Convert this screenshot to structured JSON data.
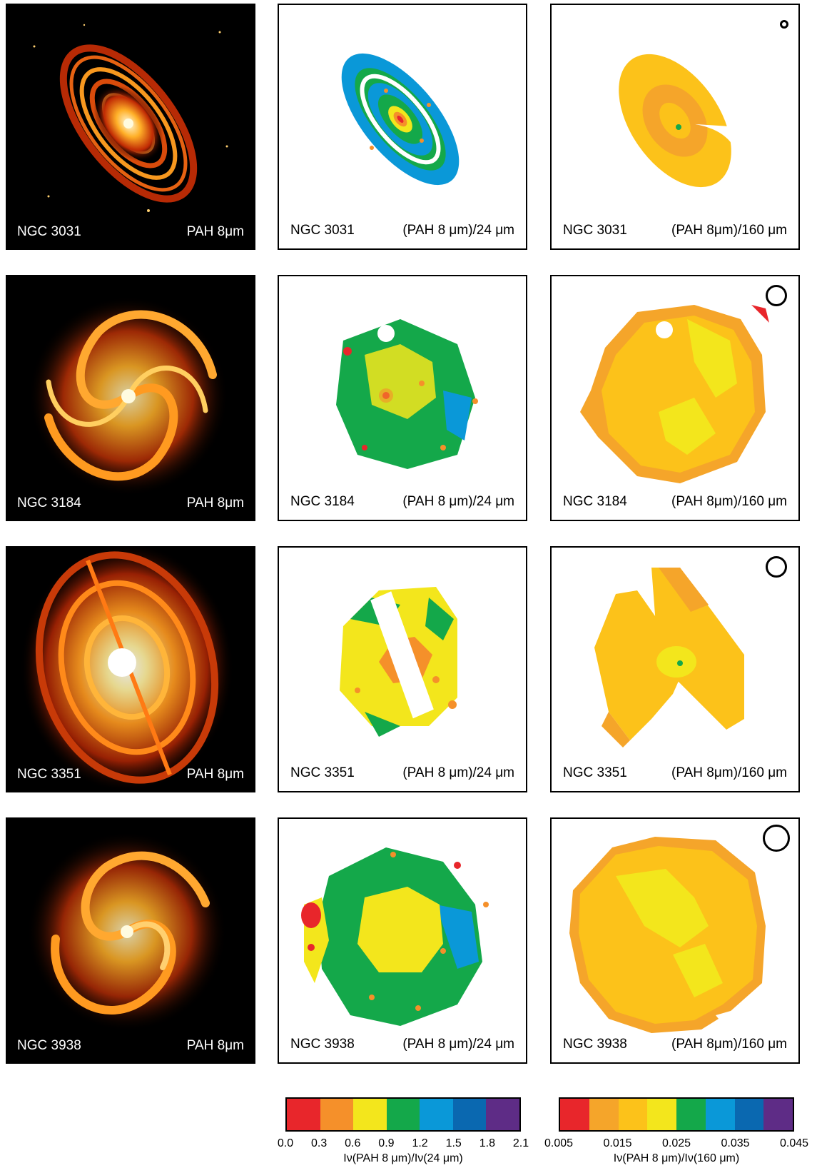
{
  "rows": [
    {
      "galaxy": "NGC 3031",
      "pah_label": "PAH 8μm",
      "ratio24_label": "(PAH 8 μm)/24 μm",
      "ratio160_label": "(PAH 8μm)/160 μm"
    },
    {
      "galaxy": "NGC 3184",
      "pah_label": "PAH 8μm",
      "ratio24_label": "(PAH 8 μm)/24 μm",
      "ratio160_label": "(PAH 8μm)/160 μm"
    },
    {
      "galaxy": "NGC 3351",
      "pah_label": "PAH 8μm",
      "ratio24_label": "(PAH 8 μm)/24 μm",
      "ratio160_label": "(PAH 8μm)/160 μm"
    },
    {
      "galaxy": "NGC 3938",
      "pah_label": "PAH 8μm",
      "ratio24_label": "(PAH 8 μm)/24 μm",
      "ratio160_label": "(PAH 8μm)/160 μm"
    }
  ],
  "colorbars": [
    {
      "ticks": [
        "0.0",
        "0.3",
        "0.6",
        "0.9",
        "1.2",
        "1.5",
        "1.8",
        "2.1"
      ],
      "title": "Iν(PAH 8 μm)/Iν(24 μm)",
      "colors": [
        "#e8262b",
        "#f5902a",
        "#f3e61c",
        "#14a84a",
        "#0a98d8",
        "#0a68b0",
        "#5e2c86"
      ]
    },
    {
      "ticks": [
        "0.005",
        "0.015",
        "0.025",
        "0.035",
        "0.045"
      ],
      "title": "Iν(PAH 8 μm)/Iν(160 μm)",
      "colors": [
        "#e8262b",
        "#f5a52a",
        "#fcc21a",
        "#f3e61c",
        "#14a84a",
        "#0a98d8",
        "#0a68b0",
        "#5e2c86"
      ]
    }
  ],
  "palette": {
    "red": "#e8262b",
    "orange": "#f5902a",
    "light_orange": "#f5a52a",
    "gold": "#fcc21a",
    "yellow": "#f3e61c",
    "green": "#14a84a",
    "cyan": "#0a98d8",
    "blue": "#0a68b0",
    "purple": "#5e2c86"
  }
}
